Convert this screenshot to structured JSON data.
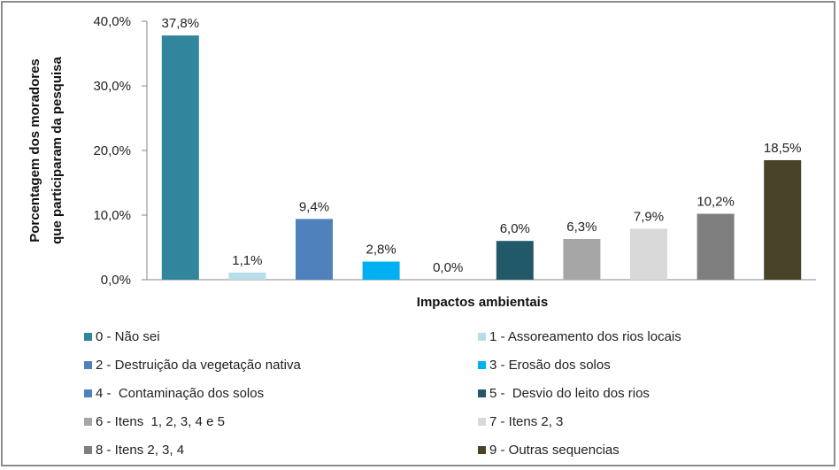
{
  "chart_data": {
    "type": "bar",
    "categories": [
      "0 - Não sei",
      "1 - Assoreamento dos rios locais",
      "2 - Destruição da vegetação nativa",
      "3 - Erosão dos solos",
      "4 -  Contaminação dos solos",
      "5 -  Desvio do leito dos rios",
      "6 - Itens  1, 2, 3, 4 e 5",
      "7 - Itens 2, 3",
      "8 - Itens 2, 3, 4",
      "9 - Outras sequencias"
    ],
    "values": [
      37.8,
      1.1,
      9.4,
      2.8,
      0.0,
      6.0,
      6.3,
      7.9,
      10.2,
      18.5
    ],
    "data_labels": [
      "37,8%",
      "1,1%",
      "9,4%",
      "2,8%",
      "0,0%",
      "6,0%",
      "6,3%",
      "7,9%",
      "10,2%",
      "18,5%"
    ],
    "colors": [
      "#31859C",
      "#B7DEE8",
      "#4F81BD",
      "#00B0F0",
      "#4F81BD",
      "#215968",
      "#A6A6A6",
      "#D9D9D9",
      "#7F7F7F",
      "#494429"
    ],
    "xlabel": "Impactos ambientais",
    "ylabel": [
      "Porcentagem dos moradores",
      "que participaram da pesquisa"
    ],
    "ylim": [
      0,
      40
    ],
    "yticks": [
      0,
      10,
      20,
      30,
      40
    ],
    "ytick_labels": [
      "0,0%",
      "10,0%",
      "20,0%",
      "30,0%",
      "40,0%"
    ],
    "grid": false,
    "legend_position": "bottom"
  }
}
